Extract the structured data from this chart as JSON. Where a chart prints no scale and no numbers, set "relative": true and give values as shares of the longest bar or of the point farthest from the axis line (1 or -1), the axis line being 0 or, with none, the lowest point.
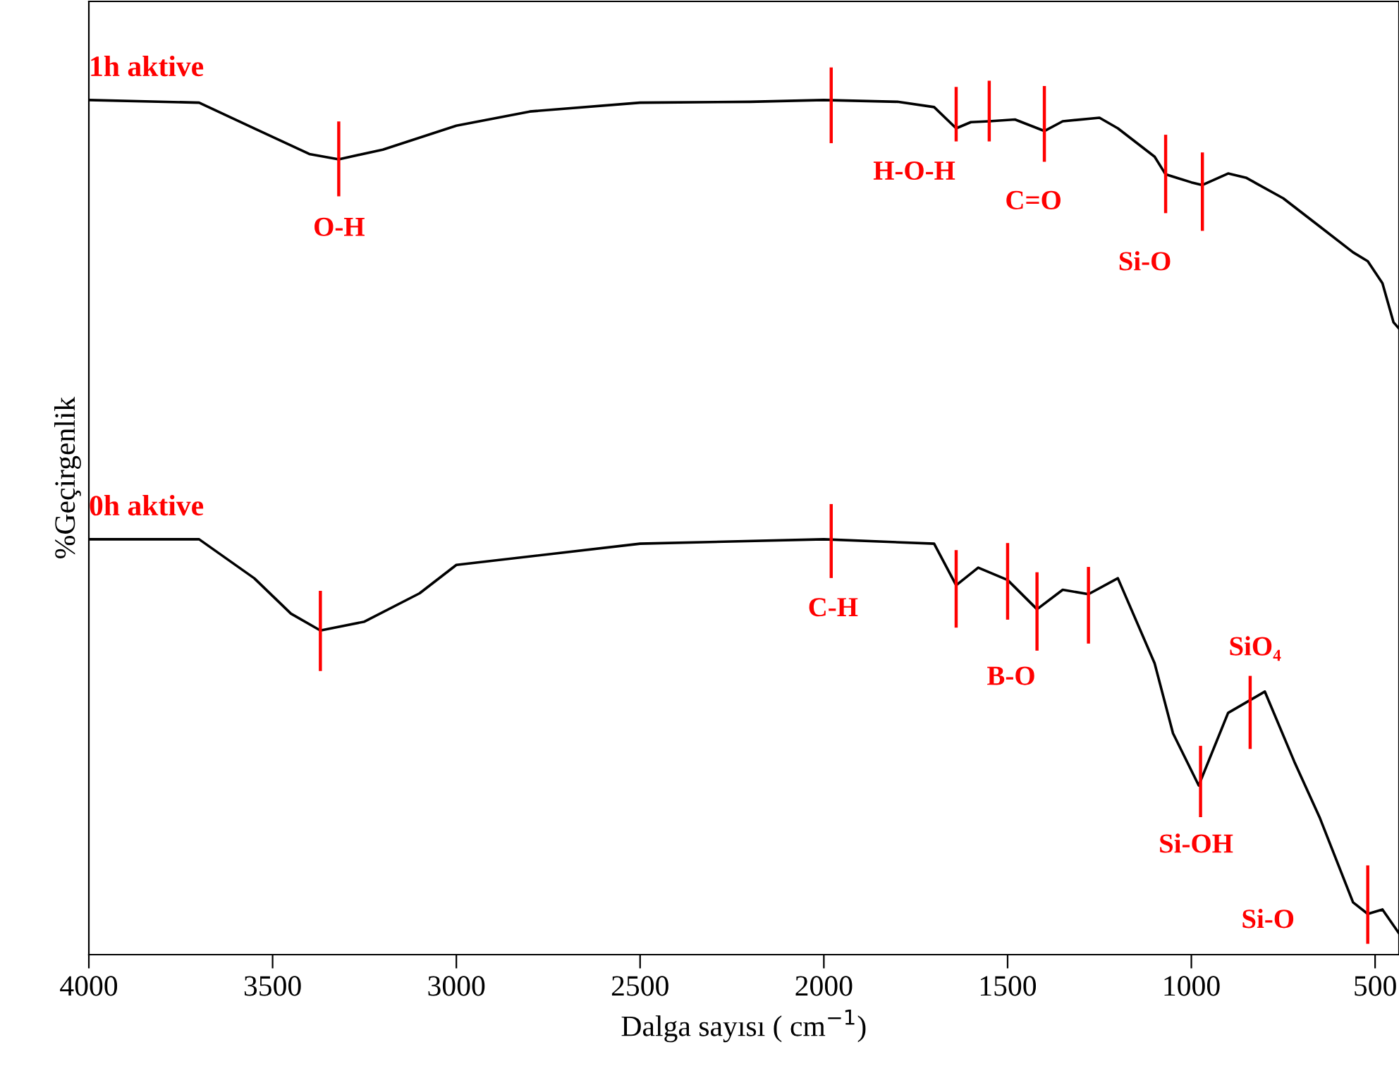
{
  "chart_data": {
    "type": "line",
    "relative": true,
    "xlabel": "Dalga sayısı ( cm$^{−1}$)",
    "ylabel": "%Geçirgenlik",
    "xlim": [
      4000,
      435
    ],
    "xticks": [
      4000,
      3500,
      3000,
      2500,
      2000,
      1500,
      1000,
      500
    ],
    "tick_labels": "x",
    "grid": false,
    "series": [
      {
        "name": "1h aktive",
        "color": "#000000",
        "x": [
          4000,
          3700,
          3550,
          3400,
          3320,
          3200,
          3000,
          2800,
          2500,
          2200,
          2000,
          1800,
          1700,
          1640,
          1600,
          1550,
          1480,
          1400,
          1350,
          1250,
          1200,
          1100,
          1070,
          1000,
          970,
          900,
          850,
          750,
          650,
          560,
          520,
          480,
          450,
          435
        ],
        "values": [
          0.965,
          0.962,
          0.933,
          0.904,
          0.898,
          0.909,
          0.936,
          0.952,
          0.962,
          0.963,
          0.965,
          0.963,
          0.957,
          0.933,
          0.94,
          0.941,
          0.943,
          0.93,
          0.941,
          0.945,
          0.933,
          0.901,
          0.881,
          0.872,
          0.869,
          0.882,
          0.877,
          0.854,
          0.822,
          0.793,
          0.783,
          0.758,
          0.714,
          0.707
        ]
      },
      {
        "name": "0h aktive",
        "color": "#000000",
        "x": [
          4000,
          3700,
          3550,
          3450,
          3370,
          3250,
          3100,
          3000,
          2500,
          2000,
          1700,
          1640,
          1580,
          1500,
          1420,
          1350,
          1280,
          1200,
          1100,
          1050,
          980,
          900,
          800,
          720,
          650,
          560,
          520,
          480,
          435
        ],
        "values": [
          0.469,
          0.469,
          0.425,
          0.385,
          0.366,
          0.376,
          0.408,
          0.44,
          0.464,
          0.469,
          0.464,
          0.417,
          0.437,
          0.423,
          0.39,
          0.412,
          0.407,
          0.425,
          0.329,
          0.25,
          0.191,
          0.273,
          0.297,
          0.218,
          0.154,
          0.059,
          0.046,
          0.051,
          0.024
        ]
      },
      {
        "color": "#ff0000",
        "x": [
          3320,
          3320
        ],
        "values": [
          0.858,
          0.939
        ]
      },
      {
        "color": "#ff0000",
        "x": [
          1980,
          1980
        ],
        "values": [
          0.918,
          1.0
        ]
      },
      {
        "color": "#ff0000",
        "x": [
          1640,
          1640
        ],
        "values": [
          0.92,
          0.978
        ]
      },
      {
        "color": "#ff0000",
        "x": [
          1550,
          1550
        ],
        "values": [
          0.92,
          0.985
        ]
      },
      {
        "color": "#ff0000",
        "x": [
          1400,
          1400
        ],
        "values": [
          0.897,
          0.979
        ]
      },
      {
        "color": "#ff0000",
        "x": [
          1070,
          1070
        ],
        "values": [
          0.839,
          0.924
        ]
      },
      {
        "color": "#ff0000",
        "x": [
          970,
          970
        ],
        "values": [
          0.819,
          0.904
        ]
      },
      {
        "color": "#ff0000",
        "x": [
          3370,
          3370
        ],
        "values": [
          0.322,
          0.409
        ]
      },
      {
        "color": "#ff0000",
        "x": [
          1980,
          1980
        ],
        "values": [
          0.427,
          0.507
        ]
      },
      {
        "color": "#ff0000",
        "x": [
          1640,
          1640
        ],
        "values": [
          0.371,
          0.455
        ]
      },
      {
        "color": "#ff0000",
        "x": [
          1500,
          1500
        ],
        "values": [
          0.38,
          0.463
        ]
      },
      {
        "color": "#ff0000",
        "x": [
          1420,
          1420
        ],
        "values": [
          0.345,
          0.43
        ]
      },
      {
        "color": "#ff0000",
        "x": [
          1280,
          1280
        ],
        "values": [
          0.353,
          0.436
        ]
      },
      {
        "color": "#ff0000",
        "x": [
          975,
          975
        ],
        "values": [
          0.157,
          0.234
        ]
      },
      {
        "color": "#ff0000",
        "x": [
          840,
          840
        ],
        "values": [
          0.234,
          0.313
        ]
      },
      {
        "color": "#ff0000",
        "x": [
          520,
          520
        ],
        "values": [
          0.014,
          0.099
        ]
      }
    ],
    "annotations": [
      "O-H",
      "H-O-H",
      "C=O",
      "Si-O",
      "C-H",
      "B-O",
      "SiO₄",
      "Si-OH",
      "Si-O"
    ]
  }
}
